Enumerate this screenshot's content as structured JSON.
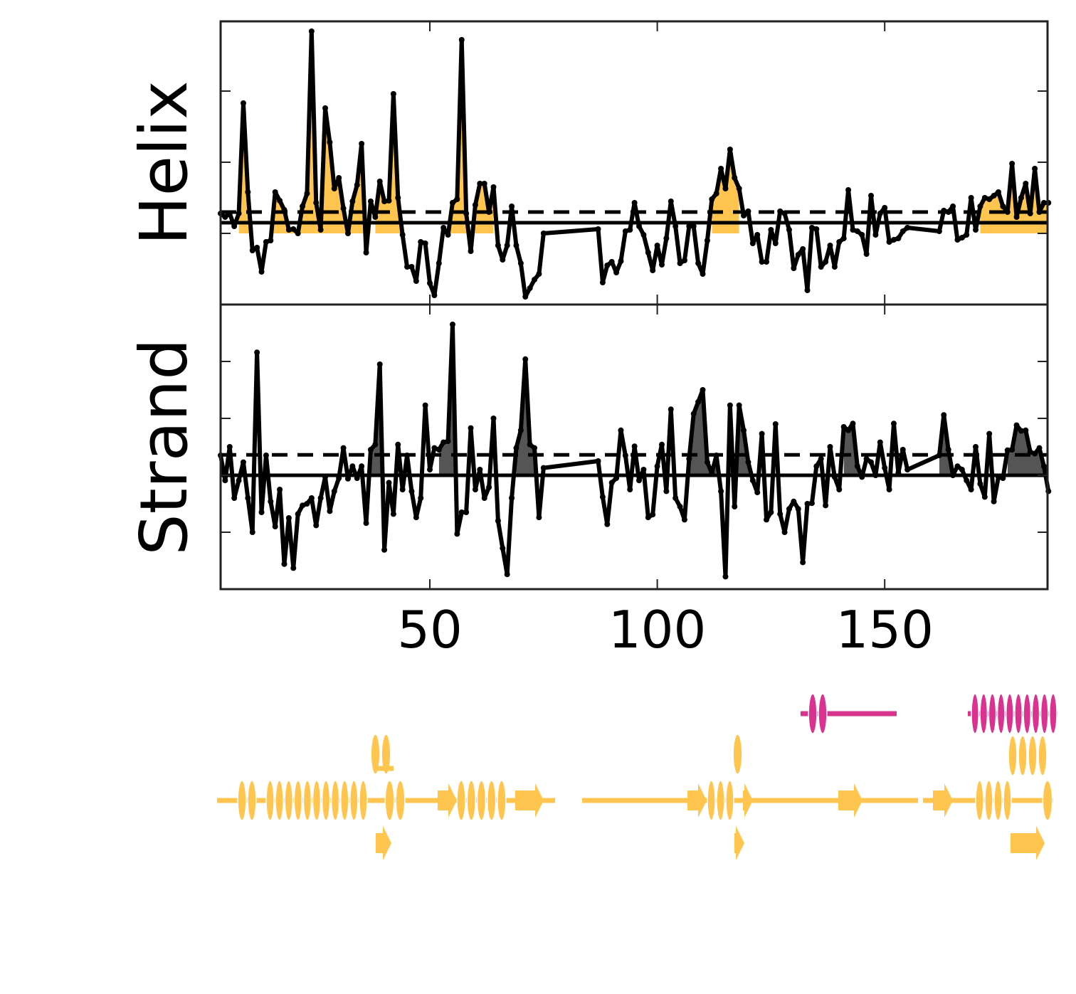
{
  "chart_data": {
    "type": "line",
    "x": [
      4,
      5,
      6,
      7,
      8,
      9,
      10,
      11,
      12,
      13,
      14,
      15,
      16,
      17,
      18,
      19,
      20,
      21,
      22,
      23,
      24,
      25,
      26,
      27,
      28,
      29,
      30,
      31,
      32,
      33,
      34,
      35,
      36,
      37,
      38,
      39,
      40,
      41,
      42,
      43,
      44,
      45,
      46,
      47,
      48,
      49,
      50,
      51,
      52,
      53,
      54,
      55,
      56,
      57,
      58,
      59,
      60,
      61,
      62,
      63,
      64,
      65,
      66,
      67,
      68,
      69,
      70,
      71,
      72,
      73,
      74,
      75,
      87,
      88,
      89,
      90,
      91,
      92,
      93,
      94,
      95,
      96,
      97,
      98,
      99,
      100,
      101,
      102,
      103,
      104,
      105,
      106,
      107,
      108,
      109,
      110,
      111,
      112,
      113,
      114,
      115,
      116,
      117,
      118,
      119,
      120,
      121,
      122,
      123,
      124,
      125,
      126,
      127,
      128,
      129,
      130,
      131,
      132,
      133,
      134,
      135,
      136,
      137,
      138,
      139,
      140,
      141,
      142,
      143,
      144,
      145,
      146,
      147,
      148,
      149,
      150,
      151,
      152,
      153,
      154,
      155,
      162,
      163,
      164,
      165,
      166,
      167,
      168,
      169,
      170,
      171,
      172,
      173,
      174,
      175,
      176,
      177,
      178,
      179,
      180,
      181,
      182,
      183,
      184,
      185,
      186
    ],
    "xlim": [
      4,
      185.8
    ],
    "xticks": [
      50,
      100,
      150
    ],
    "panels": [
      {
        "ylabel": "Helix",
        "color": "#000000",
        "fill_color": "#ffc54f",
        "ylim": [
          -1,
          2.98
        ],
        "yticks": [
          0,
          1,
          2
        ],
        "threshold": 0.15,
        "threshold_dashed": 0.3,
        "fill_base": 0,
        "fill_regions": [
          [
            8,
            37
          ],
          [
            38,
            64
          ],
          [
            112,
            118
          ],
          [
            171,
            186
          ]
        ],
        "values": [
          0.28,
          0.23,
          0.28,
          0.1,
          0.28,
          1.83,
          0.58,
          -0.24,
          -0.2,
          -0.54,
          -0.12,
          -0.1,
          0.58,
          0.46,
          0.33,
          0.05,
          0.06,
          0,
          0.38,
          0.56,
          2.84,
          0.43,
          0.05,
          1.76,
          1.28,
          0.63,
          0.78,
          0.35,
          0,
          0.45,
          0.68,
          1.26,
          -0.27,
          0.45,
          0.23,
          0.73,
          0.45,
          0.46,
          1.96,
          0.5,
          -0.02,
          -0.47,
          -0.47,
          -0.67,
          -0.12,
          -0.14,
          -0.7,
          -0.87,
          -0.42,
          0.08,
          -0.02,
          0.43,
          0.48,
          2.72,
          0.28,
          -0.25,
          0.4,
          0.7,
          0.7,
          0.3,
          0.65,
          -0.17,
          -0.37,
          -0.17,
          0.38,
          -0.17,
          -0.42,
          -0.89,
          -0.77,
          -0.65,
          -0.57,
          0,
          0.06,
          -0.69,
          -0.45,
          -0.4,
          -0.55,
          -0.39,
          0.03,
          0.05,
          0.43,
          0.1,
          -0.02,
          -0.27,
          -0.52,
          -0.17,
          -0.44,
          -0.07,
          0.45,
          0.1,
          -0.42,
          -0.38,
          0.1,
          0.1,
          -0.42,
          -0.57,
          -0.1,
          0.48,
          0.56,
          0.91,
          0.63,
          1.18,
          0.78,
          0.63,
          0.25,
          0.31,
          -0.14,
          -0.02,
          -0.4,
          -0.4,
          0.05,
          -0.14,
          0.31,
          0.28,
          0.05,
          -0.49,
          -0.3,
          -0.22,
          -0.8,
          0.08,
          0.06,
          -0.47,
          -0.4,
          -0.17,
          -0.47,
          -0.12,
          -0.07,
          0.61,
          0.05,
          0.03,
          -0.02,
          -0.29,
          0.53,
          -0.02,
          0.28,
          0.36,
          -0.12,
          -0.09,
          -0.07,
          0.03,
          0.08,
          0.03,
          0.32,
          0.3,
          0.38,
          -0.09,
          -0.06,
          -0.02,
          0.5,
          0.05,
          0.38,
          0.5,
          0.48,
          0.53,
          0.58,
          0.38,
          0.3,
          0.98,
          0.23,
          0.5,
          0.7,
          0.28,
          0.91,
          0.3,
          0.43,
          0.43
        ]
      },
      {
        "ylabel": "Strand",
        "color": "#000000",
        "fill_color": "#555555",
        "ylim": [
          -2,
          3
        ],
        "yticks": [
          -1,
          0,
          1,
          2
        ],
        "threshold": 0,
        "threshold_dashed": 0.36,
        "fill_base": 0,
        "fill_regions": [
          [
            36,
            40
          ],
          [
            52,
            56
          ],
          [
            69,
            73
          ],
          [
            107,
            113
          ],
          [
            116,
            121
          ],
          [
            141,
            145
          ],
          [
            162,
            165
          ],
          [
            177,
            186
          ]
        ],
        "values": [
          0.35,
          -0.09,
          0.5,
          -0.4,
          -0.09,
          0.23,
          -0.4,
          -1.0,
          2.16,
          -0.65,
          0.35,
          -0.46,
          -0.9,
          -0.25,
          -1.56,
          -0.75,
          -1.63,
          -0.68,
          -0.53,
          -0.5,
          -0.4,
          -0.88,
          -0.4,
          -0.03,
          -0.63,
          -0.28,
          -0.05,
          0.48,
          -0.06,
          0.16,
          -0.05,
          0.16,
          -0.84,
          0.45,
          0.54,
          1.95,
          -1.31,
          -0.13,
          -0.68,
          0.54,
          -0.25,
          0.35,
          -0.28,
          -0.74,
          -0.4,
          1.23,
          0.1,
          0.48,
          0.45,
          0.58,
          0.6,
          2.65,
          -1.03,
          -0.65,
          -0.65,
          0.83,
          -0.25,
          0.1,
          -0.4,
          -0.21,
          1.0,
          -0.8,
          -1.28,
          -1.74,
          -0.4,
          0.48,
          0.79,
          2.04,
          0.54,
          0.48,
          -0.74,
          0.13,
          0.25,
          -0.38,
          -0.86,
          -0.13,
          -0.05,
          0.79,
          0.35,
          -0.25,
          0.51,
          -0.09,
          0.1,
          -0.74,
          -0.69,
          0.16,
          0.54,
          -0.28,
          1.16,
          -0.4,
          -0.55,
          -0.78,
          0.29,
          1.08,
          1.29,
          1.5,
          0.23,
          0.04,
          0.35,
          -0.28,
          -1.78,
          1.23,
          -0.55,
          1.23,
          0.79,
          0.23,
          -0.09,
          -0.3,
          0.73,
          -0.78,
          -0.65,
          0.9,
          -0.68,
          -1.0,
          -0.59,
          -0.46,
          -0.59,
          -1.53,
          -0.5,
          -0.49,
          0.16,
          0.29,
          -0.53,
          0.5,
          -0.03,
          -0.25,
          0.85,
          0.79,
          0.91,
          0.16,
          -0.03,
          0.29,
          0.23,
          0,
          0.58,
          0.13,
          -0.25,
          0.91,
          0.04,
          0.45,
          0.1,
          0.35,
          1.06,
          0.45,
          0,
          0.16,
          0.1,
          -0.09,
          -0.25,
          0.5,
          -0.15,
          -0.38,
          0.73,
          -0.46,
          -0.03,
          -0.05,
          0.44,
          0.45,
          0.88,
          0.78,
          0.79,
          0.41,
          0.38,
          0.48,
          0.16,
          -0.28
        ]
      }
    ]
  }
}
